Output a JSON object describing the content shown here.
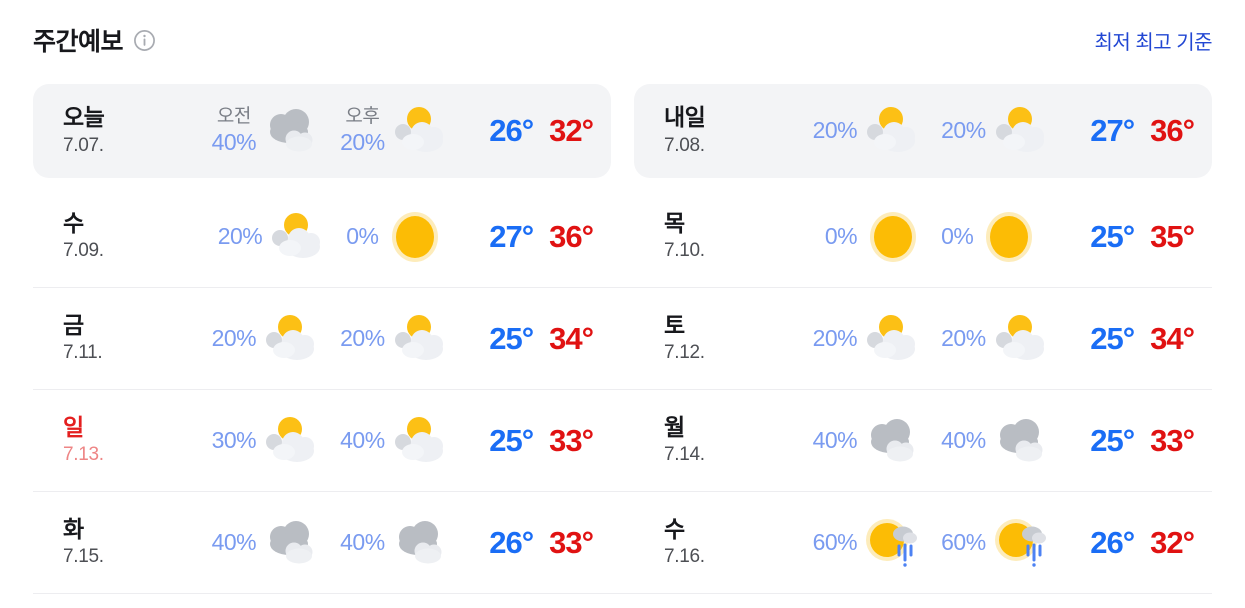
{
  "header": {
    "title": "주간예보",
    "info_icon": "info-icon",
    "legend_link": "최저 최고 기준"
  },
  "colors": {
    "temp_low_blue": "#1a6df5",
    "temp_high_red": "#e01212",
    "percent_blue": "#7a9bf0",
    "legend_link_blue": "#2247d3",
    "sunday_red": "#e41f1f",
    "card_background": "#f3f4f6"
  },
  "days": [
    {
      "label": "오늘",
      "date": "7.07.",
      "slots": [
        {
          "period": "오전",
          "percent": "40%",
          "icon": "cloudy"
        },
        {
          "period": "오후",
          "percent": "20%",
          "icon": "partly-sunny"
        }
      ],
      "low": "26°",
      "high": "32°"
    },
    {
      "label": "내일",
      "date": "7.08.",
      "slots": [
        {
          "percent": "20%",
          "icon": "partly-sunny"
        },
        {
          "percent": "20%",
          "icon": "partly-sunny"
        }
      ],
      "low": "27°",
      "high": "36°"
    },
    {
      "label": "수",
      "date": "7.09.",
      "slots": [
        {
          "percent": "20%",
          "icon": "partly-sunny"
        },
        {
          "percent": "0%",
          "icon": "sunny"
        }
      ],
      "low": "27°",
      "high": "36°"
    },
    {
      "label": "목",
      "date": "7.10.",
      "slots": [
        {
          "percent": "0%",
          "icon": "sunny"
        },
        {
          "percent": "0%",
          "icon": "sunny"
        }
      ],
      "low": "25°",
      "high": "35°"
    },
    {
      "label": "금",
      "date": "7.11.",
      "slots": [
        {
          "percent": "20%",
          "icon": "partly-sunny"
        },
        {
          "percent": "20%",
          "icon": "partly-sunny"
        }
      ],
      "low": "25°",
      "high": "34°"
    },
    {
      "label": "토",
      "date": "7.12.",
      "slots": [
        {
          "percent": "20%",
          "icon": "partly-sunny"
        },
        {
          "percent": "20%",
          "icon": "partly-sunny"
        }
      ],
      "low": "25°",
      "high": "34°"
    },
    {
      "label": "일",
      "date": "7.13.",
      "red": true,
      "slots": [
        {
          "percent": "30%",
          "icon": "partly-sunny"
        },
        {
          "percent": "40%",
          "icon": "partly-sunny"
        }
      ],
      "low": "25°",
      "high": "33°"
    },
    {
      "label": "월",
      "date": "7.14.",
      "slots": [
        {
          "percent": "40%",
          "icon": "cloudy"
        },
        {
          "percent": "40%",
          "icon": "cloudy"
        }
      ],
      "low": "25°",
      "high": "33°"
    },
    {
      "label": "화",
      "date": "7.15.",
      "slots": [
        {
          "percent": "40%",
          "icon": "cloudy"
        },
        {
          "percent": "40%",
          "icon": "cloudy"
        }
      ],
      "low": "26°",
      "high": "33°"
    },
    {
      "label": "수",
      "date": "7.16.",
      "slots": [
        {
          "percent": "60%",
          "icon": "sun-rain"
        },
        {
          "percent": "60%",
          "icon": "sun-rain"
        }
      ],
      "low": "26°",
      "high": "32°"
    }
  ]
}
